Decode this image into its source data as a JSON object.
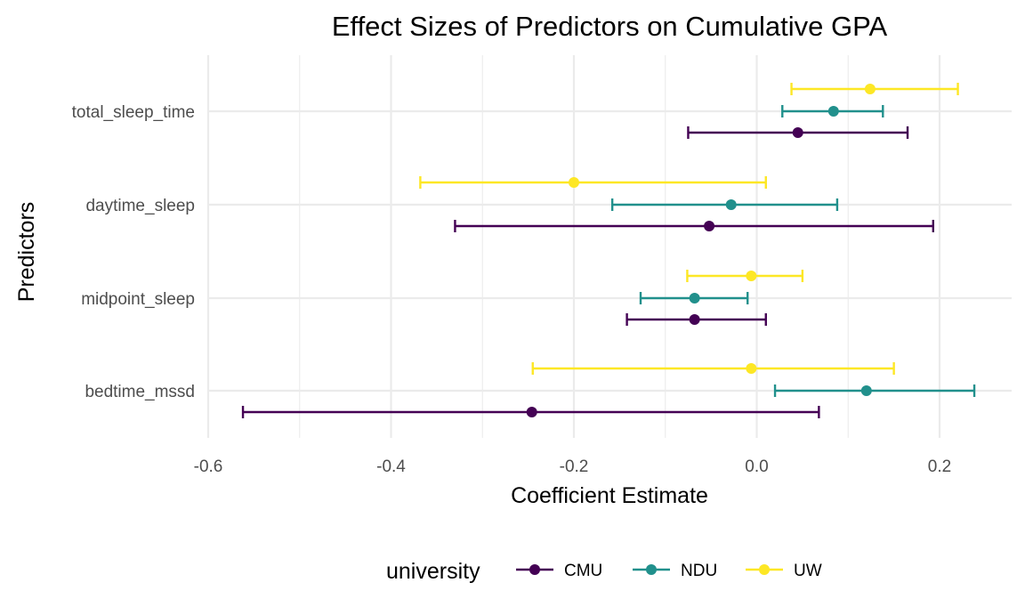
{
  "chart_data": {
    "type": "errorbar",
    "title": "Effect Sizes of Predictors on Cumulative GPA",
    "xlabel": "Coefficient Estimate",
    "ylabel": "Predictors",
    "xlim": [
      -0.6,
      0.28
    ],
    "x_ticks": [
      -0.6,
      -0.4,
      -0.2,
      0.0,
      0.2
    ],
    "x_tick_labels": [
      "-0.6",
      "-0.4",
      "-0.2",
      "0.0",
      "0.2"
    ],
    "categories": [
      "total_sleep_time",
      "daytime_sleep",
      "midpoint_sleep",
      "bedtime_mssd"
    ],
    "grid": true,
    "legend": {
      "title": "university",
      "position": "bottom"
    },
    "series": [
      {
        "name": "CMU",
        "color": "#440154",
        "points": [
          {
            "predictor": "total_sleep_time",
            "estimate": 0.045,
            "low": -0.075,
            "high": 0.165
          },
          {
            "predictor": "daytime_sleep",
            "estimate": -0.052,
            "low": -0.33,
            "high": 0.193
          },
          {
            "predictor": "midpoint_sleep",
            "estimate": -0.068,
            "low": -0.142,
            "high": 0.01
          },
          {
            "predictor": "bedtime_mssd",
            "estimate": -0.246,
            "low": -0.562,
            "high": 0.068
          }
        ]
      },
      {
        "name": "NDU",
        "color": "#21908C",
        "points": [
          {
            "predictor": "total_sleep_time",
            "estimate": 0.084,
            "low": 0.028,
            "high": 0.138
          },
          {
            "predictor": "daytime_sleep",
            "estimate": -0.028,
            "low": -0.158,
            "high": 0.088
          },
          {
            "predictor": "midpoint_sleep",
            "estimate": -0.068,
            "low": -0.127,
            "high": -0.01
          },
          {
            "predictor": "bedtime_mssd",
            "estimate": 0.12,
            "low": 0.02,
            "high": 0.238
          }
        ]
      },
      {
        "name": "UW",
        "color": "#FDE725",
        "points": [
          {
            "predictor": "total_sleep_time",
            "estimate": 0.124,
            "low": 0.038,
            "high": 0.22
          },
          {
            "predictor": "daytime_sleep",
            "estimate": -0.2,
            "low": -0.368,
            "high": 0.01
          },
          {
            "predictor": "midpoint_sleep",
            "estimate": -0.006,
            "low": -0.076,
            "high": 0.05
          },
          {
            "predictor": "bedtime_mssd",
            "estimate": -0.006,
            "low": -0.245,
            "high": 0.15
          }
        ]
      }
    ]
  }
}
